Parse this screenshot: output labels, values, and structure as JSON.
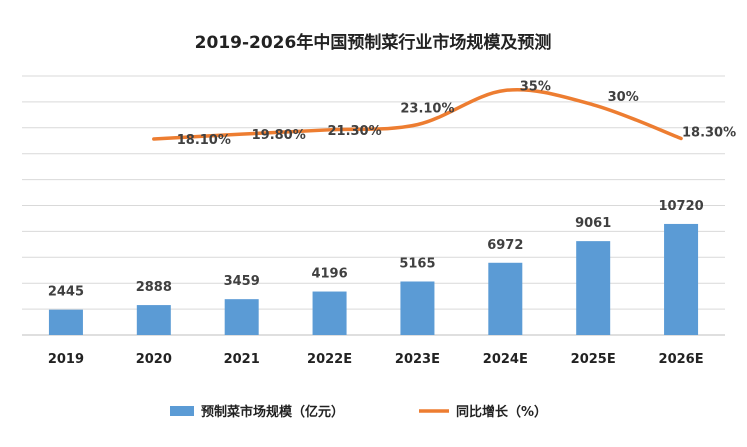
{
  "chart_data": {
    "type": "bar",
    "title": "2019-2026年中国预制菜行业市场规模及预测",
    "categories": [
      "2019",
      "2020",
      "2021",
      "2022E",
      "2023E",
      "2024E",
      "2025E",
      "2026E"
    ],
    "series": [
      {
        "name": "预制菜市场规模（亿元）",
        "type": "bar",
        "color": "#5b9bd5",
        "values": [
          2445,
          2888,
          3459,
          4196,
          5165,
          6972,
          9061,
          10720
        ],
        "labels": [
          "2445",
          "2888",
          "3459",
          "4196",
          "5165",
          "6972",
          "9061",
          "10720"
        ]
      },
      {
        "name": "同比增长（%）",
        "type": "line",
        "color": "#ed7d31",
        "values": [
          null,
          18.1,
          19.8,
          21.3,
          23.1,
          35,
          30,
          18.3
        ],
        "labels": [
          "",
          "18.10%",
          "19.80%",
          "21.30%",
          "23.10%",
          "35%",
          "30%",
          "18.30%"
        ]
      }
    ],
    "bar_ylim": [
      0,
      25000
    ],
    "line_ylim": [
      -50,
      40
    ],
    "grid": true,
    "legend_position": "bottom"
  }
}
